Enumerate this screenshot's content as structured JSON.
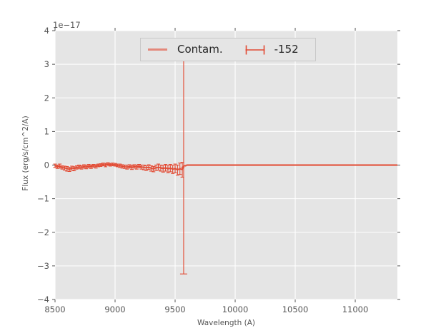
{
  "figure": {
    "background": "#ffffff",
    "axes_background": "#e5e5e5",
    "grid_color": "#ffffff",
    "tick_color": "#555555",
    "text_color": "#555555",
    "accent_red": "#e24a33",
    "accent_salmon": "rgba(226,74,51,0.6)"
  },
  "legend": {
    "items": [
      {
        "label": "Contam.",
        "symbol": "line-swatch",
        "color": "rgba(226,74,51,0.6)"
      },
      {
        "label": "-152",
        "symbol": "errorbar-symbol",
        "color": "#e24a33"
      }
    ]
  },
  "chart_data": {
    "type": "line",
    "title": "",
    "xlabel": "Wavelength (A)",
    "ylabel": "Flux (erg/s/cm^2/A)",
    "y_offset_text": "1e−17",
    "y_unit_scale": "1e-17",
    "xlim": [
      8500,
      11351
    ],
    "ylim": [
      -4,
      4
    ],
    "xticks": [
      8500,
      9000,
      9500,
      10000,
      10500,
      11000
    ],
    "yticks": [
      -4,
      -3,
      -2,
      -1,
      0,
      1,
      2,
      3,
      4
    ],
    "grid": true,
    "legend_position": "upper center",
    "series": [
      {
        "name": "Contam.",
        "style": "line",
        "color": "rgba(226,74,51,0.55)",
        "line_width": 2.4,
        "x": [
          8500,
          8530,
          8560,
          8590,
          8620,
          8650,
          8680,
          8710,
          8740,
          8770,
          8800,
          8830,
          8860,
          8890,
          8920,
          8950,
          8980,
          9010,
          9040,
          9070,
          9100,
          9130,
          9160,
          9190,
          9220,
          9250,
          9280,
          9310,
          9340,
          9370,
          9400,
          9430,
          9460,
          9490,
          9520,
          9545,
          9571,
          9600,
          11351
        ],
        "y": [
          -0.02,
          -0.04,
          -0.06,
          -0.09,
          -0.11,
          -0.09,
          -0.07,
          -0.05,
          -0.05,
          -0.04,
          -0.03,
          -0.02,
          -0.01,
          0.01,
          0.01,
          0.02,
          0.01,
          0.0,
          -0.02,
          -0.04,
          -0.05,
          -0.05,
          -0.04,
          -0.04,
          -0.05,
          -0.07,
          -0.07,
          -0.09,
          -0.08,
          -0.07,
          -0.09,
          -0.09,
          -0.1,
          -0.11,
          -0.12,
          -0.11,
          -0.05,
          0.0,
          0.0
        ]
      },
      {
        "name": "-152",
        "style": "errorbar",
        "color": "#e24a33",
        "line_width": 1.4,
        "x": [
          8500,
          8520,
          8540,
          8560,
          8580,
          8600,
          8620,
          8640,
          8660,
          8680,
          8700,
          8720,
          8740,
          8760,
          8780,
          8800,
          8820,
          8840,
          8860,
          8880,
          8900,
          8920,
          8940,
          8960,
          8980,
          9000,
          9020,
          9040,
          9060,
          9080,
          9100,
          9120,
          9140,
          9160,
          9180,
          9200,
          9220,
          9240,
          9260,
          9280,
          9300,
          9320,
          9340,
          9360,
          9380,
          9400,
          9420,
          9440,
          9460,
          9480,
          9500,
          9520,
          9540,
          9560,
          9571,
          9600,
          11351
        ],
        "y": [
          -0.02,
          -0.05,
          -0.03,
          -0.07,
          -0.09,
          -0.11,
          -0.13,
          -0.09,
          -0.11,
          -0.07,
          -0.05,
          -0.07,
          -0.04,
          -0.06,
          -0.03,
          -0.05,
          -0.02,
          -0.04,
          -0.01,
          0.0,
          0.02,
          0.0,
          0.03,
          0.01,
          0.02,
          0.01,
          -0.01,
          -0.02,
          -0.04,
          -0.05,
          -0.06,
          -0.04,
          -0.07,
          -0.04,
          -0.06,
          -0.03,
          -0.06,
          -0.07,
          -0.09,
          -0.06,
          -0.1,
          -0.12,
          -0.08,
          -0.06,
          -0.09,
          -0.11,
          -0.08,
          -0.12,
          -0.09,
          -0.13,
          -0.1,
          -0.15,
          -0.11,
          -0.14,
          -0.02,
          0.0,
          0.0
        ],
        "yerr": [
          0.05,
          0.05,
          0.06,
          0.05,
          0.06,
          0.07,
          0.06,
          0.06,
          0.06,
          0.05,
          0.05,
          0.05,
          0.05,
          0.05,
          0.05,
          0.05,
          0.04,
          0.05,
          0.04,
          0.04,
          0.04,
          0.05,
          0.04,
          0.04,
          0.04,
          0.04,
          0.04,
          0.05,
          0.05,
          0.05,
          0.06,
          0.05,
          0.06,
          0.05,
          0.06,
          0.05,
          0.06,
          0.07,
          0.07,
          0.07,
          0.08,
          0.08,
          0.08,
          0.09,
          0.09,
          0.1,
          0.1,
          0.11,
          0.11,
          0.12,
          0.13,
          0.15,
          0.17,
          0.22,
          3.22,
          0,
          0
        ]
      }
    ]
  }
}
